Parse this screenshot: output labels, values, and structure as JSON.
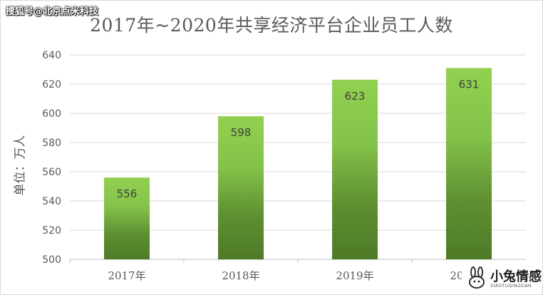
{
  "watermark_top": "搜狐号@北京点米科技",
  "watermark_logo": {
    "text": "小兔情感",
    "subtext": "XIAOTUQINGGAN"
  },
  "chart_data": {
    "type": "bar",
    "title": "2017年~2020年共享经济平台企业员工人数",
    "ylabel": "单位：万人",
    "xlabel": "",
    "categories": [
      "2017年",
      "2018年",
      "2019年",
      "2020年"
    ],
    "values": [
      556,
      598,
      623,
      631
    ],
    "ylim": [
      500,
      640
    ],
    "yticks": [
      500,
      520,
      540,
      560,
      580,
      600,
      620,
      640
    ],
    "grid": true,
    "legend": "none",
    "colors": {
      "bar_top": "#92d050",
      "bar_bottom": "#4f7a28",
      "grid": "#d9d9d9",
      "text": "#595959"
    }
  }
}
